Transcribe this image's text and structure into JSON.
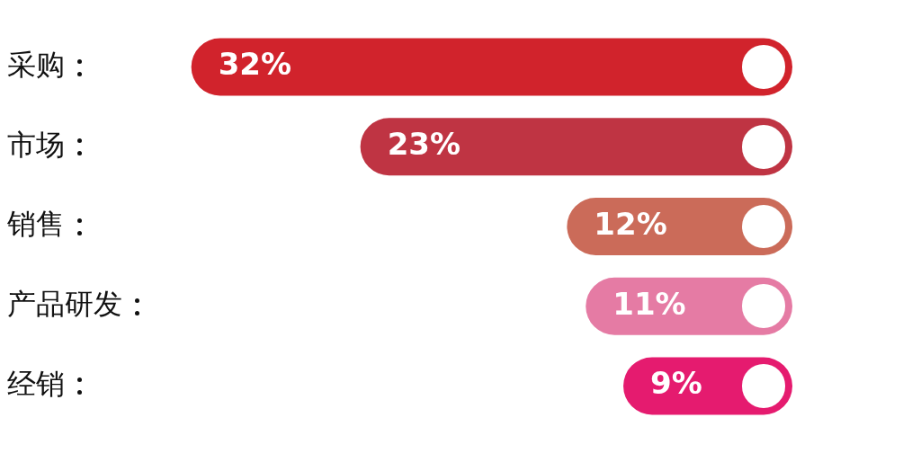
{
  "chart_data": {
    "type": "bar",
    "orientation": "horizontal",
    "data_labels": true,
    "legend": false,
    "categories": [
      "采购",
      "市场",
      "销售",
      "产品研发",
      "经销"
    ],
    "values": [
      32,
      23,
      12,
      11,
      9
    ],
    "colors": [
      "#d1232c",
      "#bf3443",
      "#cb6b59",
      "#e57ba4",
      "#e51b6f"
    ],
    "value_labels": [
      "32%",
      "23%",
      "12%",
      "11%",
      "9%"
    ]
  }
}
